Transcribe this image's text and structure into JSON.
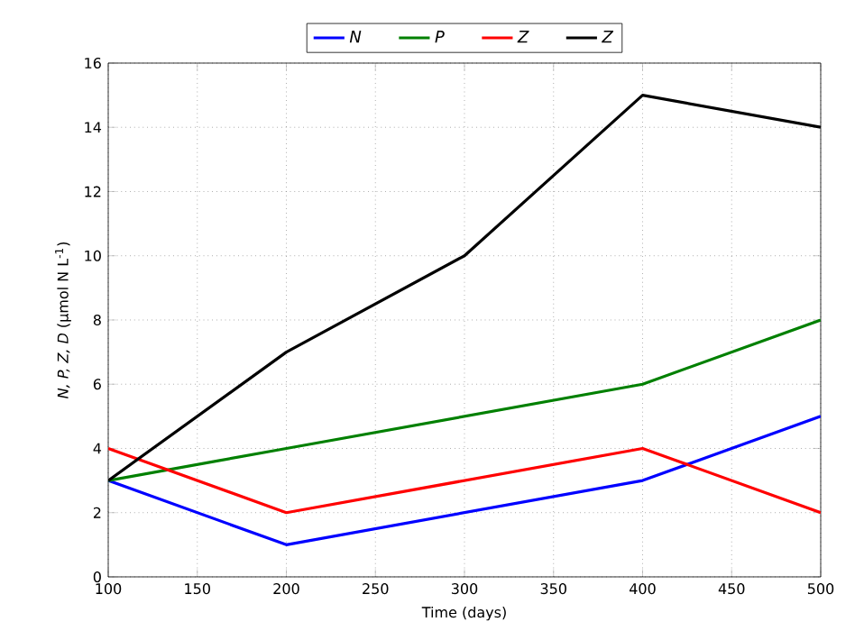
{
  "chart_data": {
    "type": "line",
    "xlabel": "Time (days)",
    "ylabel": "*N, P, Z, D* (μmol N L$^{-1}$)",
    "x": [
      100,
      200,
      300,
      400,
      500
    ],
    "series": [
      {
        "name": "N",
        "color": "#0000ff",
        "values": [
          3,
          1,
          2,
          3,
          5
        ]
      },
      {
        "name": "P",
        "color": "#008000",
        "values": [
          3,
          4,
          5,
          6,
          8
        ]
      },
      {
        "name": "Z",
        "color": "#ff0000",
        "values": [
          4,
          2,
          3,
          4,
          2
        ]
      },
      {
        "name": "Z",
        "color": "#000000",
        "values": [
          3,
          7,
          10,
          15,
          14
        ]
      }
    ],
    "xlim": [
      100,
      500
    ],
    "ylim": [
      0,
      16
    ],
    "xticks": [
      100,
      150,
      200,
      250,
      300,
      350,
      400,
      450,
      500
    ],
    "yticks": [
      0,
      2,
      4,
      6,
      8,
      10,
      12,
      14,
      16
    ],
    "grid": true,
    "legend": "top",
    "marker": "none",
    "line_style": "solid"
  }
}
